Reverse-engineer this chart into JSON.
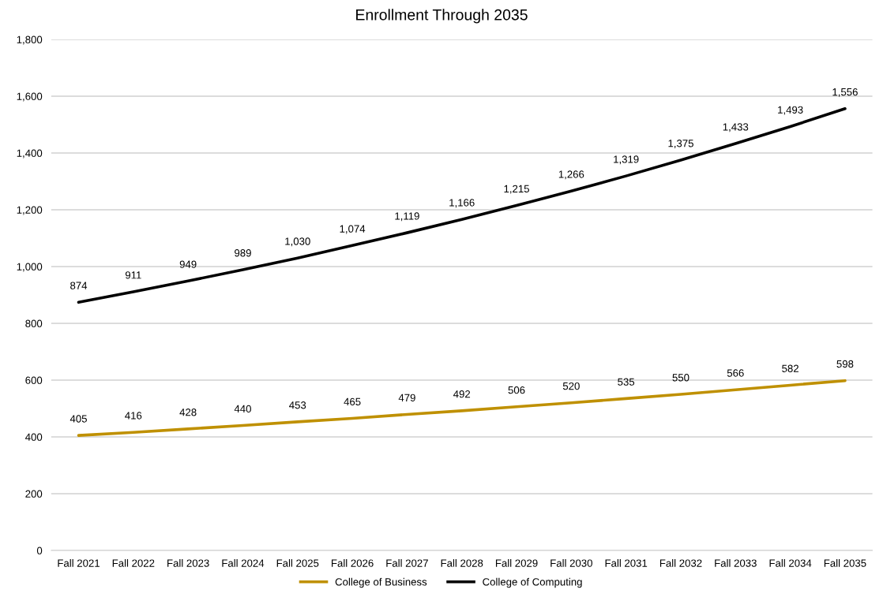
{
  "chart_data": {
    "type": "line",
    "title": "Enrollment Through 2035",
    "categories": [
      "Fall 2021",
      "Fall 2022",
      "Fall 2023",
      "Fall 2024",
      "Fall 2025",
      "Fall 2026",
      "Fall 2027",
      "Fall 2028",
      "Fall 2029",
      "Fall 2030",
      "Fall 2031",
      "Fall 2032",
      "Fall 2033",
      "Fall 2034",
      "Fall 2035"
    ],
    "series": [
      {
        "name": "College of Business",
        "color": "#bf9000",
        "values": [
          405,
          416,
          428,
          440,
          453,
          465,
          479,
          492,
          506,
          520,
          535,
          550,
          566,
          582,
          598
        ],
        "value_labels": [
          "405",
          "416",
          "428",
          "440",
          "453",
          "465",
          "479",
          "492",
          "506",
          "520",
          "535",
          "550",
          "566",
          "582",
          "598"
        ]
      },
      {
        "name": "College of Computing",
        "color": "#000000",
        "values": [
          874,
          911,
          949,
          989,
          1030,
          1074,
          1119,
          1166,
          1215,
          1266,
          1319,
          1375,
          1433,
          1493,
          1556
        ],
        "value_labels": [
          "874",
          "911",
          "949",
          "989",
          "1,030",
          "1,074",
          "1,119",
          "1,166",
          "1,215",
          "1,266",
          "1,319",
          "1,375",
          "1,433",
          "1,493",
          "1,556"
        ]
      }
    ],
    "ylim": [
      0,
      1800
    ],
    "yticks": [
      0,
      200,
      400,
      600,
      800,
      {
        "value": 1000,
        "label": "1,000"
      },
      {
        "value": 1200,
        "label": "1,200"
      },
      {
        "value": 1400,
        "label": "1,400"
      },
      {
        "value": 1600,
        "label": "1,600"
      },
      {
        "value": 1800,
        "label": "1,800"
      }
    ],
    "grid": "y",
    "legend": "bottom",
    "marker": "none",
    "line_style": "solid"
  }
}
